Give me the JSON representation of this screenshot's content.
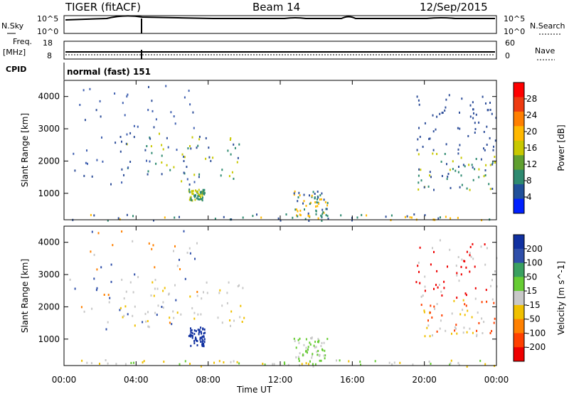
{
  "header": {
    "title": "TIGER (fitACF)",
    "beam": "Beam 14",
    "date": "12/Sep/2015"
  },
  "params": {
    "nsky_label": "N.Sky",
    "nsearch_label": "N.Search",
    "freq_label": "Freq.",
    "freq_unit": "[MHz]",
    "nave_label": "Nave",
    "cpid_label": "CPID",
    "cpid_value": "normal (fast) 151",
    "noise_ticks": [
      "10^5",
      "10^0"
    ],
    "noise_right_ticks": [
      "10^5",
      "10^0"
    ],
    "freq_ticks": [
      "18",
      "8"
    ],
    "nave_ticks": [
      "60",
      "0"
    ]
  },
  "chart_data": [
    {
      "type": "heatmap",
      "name": "power",
      "ylabel": "Slant Range [km]",
      "ylim": [
        180,
        4500
      ],
      "yticks": [
        1000,
        2000,
        3000,
        4000
      ],
      "xlim": [
        0,
        24
      ],
      "colorbar": {
        "label": "Power [dB]",
        "ticks": [
          "28",
          "24",
          "20",
          "16",
          "12",
          "8",
          "4"
        ],
        "colors": [
          "#ff0000",
          "#ee3a10",
          "#ff7f00",
          "#ffb800",
          "#c8c800",
          "#60a030",
          "#2e8a70",
          "#20509a",
          "#0020ff"
        ]
      },
      "regions": [
        {
          "t0": 3.1,
          "t1": 10.0,
          "r0": 1400,
          "r1": 2900,
          "colors": [
            "#2f4f9a",
            "#2e8a70",
            "#c8c800"
          ]
        },
        {
          "t0": 0.3,
          "t1": 7.5,
          "r0": 1300,
          "r1": 4500,
          "colors": [
            "#2f4f9a",
            "#4060b0"
          ]
        },
        {
          "t0": 6.9,
          "t1": 7.8,
          "r0": 800,
          "r1": 1150,
          "colors": [
            "#2e8a70",
            "#c8c800"
          ]
        },
        {
          "t0": 12.7,
          "t1": 14.6,
          "r0": 300,
          "r1": 1100,
          "colors": [
            "#2e8a70",
            "#ffb800",
            "#2f4f9a"
          ]
        },
        {
          "t0": 19.6,
          "t1": 24.0,
          "r0": 1100,
          "r1": 2300,
          "colors": [
            "#2f4f9a",
            "#2e8a70",
            "#c8c800"
          ]
        },
        {
          "t0": 19.5,
          "t1": 24.0,
          "r0": 2300,
          "r1": 4100,
          "colors": [
            "#2f4f9a"
          ]
        },
        {
          "t0": 0.0,
          "t1": 24.0,
          "r0": 180,
          "r1": 380,
          "colors": [
            "#2e8a70",
            "#2f4f9a",
            "#ffb800"
          ]
        }
      ]
    },
    {
      "type": "heatmap",
      "name": "velocity",
      "ylabel": "Slant Range [km]",
      "xlabel": "Time UT",
      "ylim": [
        180,
        4500
      ],
      "yticks": [
        1000,
        2000,
        3000,
        4000
      ],
      "xlim": [
        0,
        24
      ],
      "xticks": [
        "00:00",
        "04:00",
        "08:00",
        "12:00",
        "16:00",
        "20:00",
        "00:00"
      ],
      "colorbar": {
        "label": "Velocity [m s^-1]",
        "ticks": [
          "200",
          "100",
          "50",
          "15",
          "-15",
          "-50",
          "-100",
          "-200"
        ],
        "colors": [
          "#1030a0",
          "#2f4faa",
          "#3aa060",
          "#66cc33",
          "#c8c8c8",
          "#f0c000",
          "#ff8000",
          "#ff4000",
          "#ee0000"
        ]
      },
      "regions": [
        {
          "t0": 3.1,
          "t1": 10.0,
          "r0": 1400,
          "r1": 2900,
          "colors": [
            "#c8c8c8",
            "#f0c000",
            "#c8c8c8"
          ]
        },
        {
          "t0": 0.3,
          "t1": 7.5,
          "r0": 1300,
          "r1": 4500,
          "colors": [
            "#c8c8c8",
            "#ff8000",
            "#2f4faa"
          ]
        },
        {
          "t0": 6.9,
          "t1": 7.8,
          "r0": 800,
          "r1": 1400,
          "colors": [
            "#1030a0"
          ]
        },
        {
          "t0": 12.7,
          "t1": 14.6,
          "r0": 300,
          "r1": 1100,
          "colors": [
            "#66cc33",
            "#c8c8c8"
          ]
        },
        {
          "t0": 19.6,
          "t1": 24.0,
          "r0": 1100,
          "r1": 2300,
          "colors": [
            "#c8c8c8",
            "#f0c000",
            "#ff4000"
          ]
        },
        {
          "t0": 19.5,
          "t1": 24.0,
          "r0": 2300,
          "r1": 4100,
          "colors": [
            "#c8c8c8",
            "#ee0000"
          ]
        },
        {
          "t0": 0.0,
          "t1": 24.0,
          "r0": 180,
          "r1": 380,
          "colors": [
            "#f0c000",
            "#66cc33",
            "#c8c8c8"
          ]
        }
      ]
    }
  ]
}
